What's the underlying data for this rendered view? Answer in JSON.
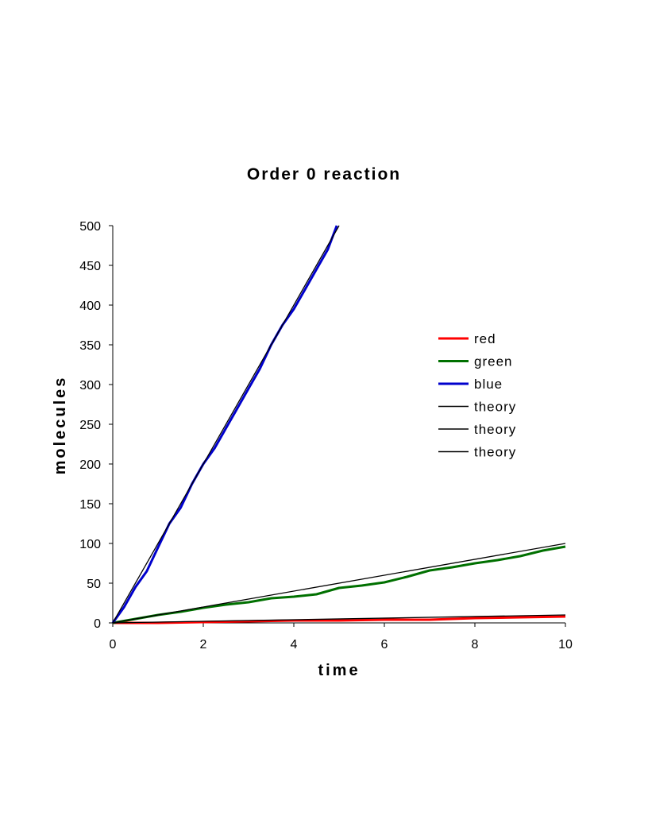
{
  "chart_data": {
    "type": "line",
    "title": "Order 0 reaction",
    "xlabel": "time",
    "ylabel": "molecules",
    "xlim": [
      0,
      10
    ],
    "ylim": [
      0,
      500
    ],
    "xticks": [
      "0",
      "2",
      "4",
      "6",
      "8",
      "10"
    ],
    "yticks": [
      "0",
      "50",
      "100",
      "150",
      "200",
      "250",
      "300",
      "350",
      "400",
      "450",
      "500"
    ],
    "grid": false,
    "legend_position": "right",
    "series": [
      {
        "name": "red",
        "color": "#ff0000",
        "x": [
          0,
          1,
          2,
          3,
          4,
          5,
          6,
          7,
          8,
          9,
          10
        ],
        "y": [
          0,
          0,
          1,
          2,
          3,
          3,
          4,
          4,
          6,
          7,
          8
        ]
      },
      {
        "name": "green",
        "color": "#007000",
        "x": [
          0,
          0.5,
          1,
          1.5,
          2,
          2.5,
          3,
          3.5,
          4,
          4.5,
          5,
          5.5,
          6,
          6.5,
          7,
          7.5,
          8,
          8.5,
          9,
          9.5,
          10
        ],
        "y": [
          0,
          5,
          10,
          14,
          19,
          23,
          26,
          31,
          33,
          36,
          44,
          47,
          51,
          58,
          66,
          70,
          75,
          79,
          84,
          91,
          96
        ]
      },
      {
        "name": "blue",
        "color": "#0000cc",
        "x": [
          0,
          0.25,
          0.5,
          0.75,
          1,
          1.25,
          1.5,
          1.75,
          2,
          2.25,
          2.5,
          2.75,
          3,
          3.25,
          3.5,
          3.75,
          4,
          4.25,
          4.5,
          4.75,
          4.95
        ],
        "y": [
          0,
          20,
          45,
          65,
          95,
          125,
          145,
          175,
          200,
          220,
          245,
          270,
          295,
          320,
          350,
          375,
          395,
          420,
          445,
          470,
          500
        ]
      },
      {
        "name": "theory",
        "color": "#000000",
        "x": [
          0,
          10
        ],
        "y": [
          0,
          10
        ]
      },
      {
        "name": "theory",
        "color": "#000000",
        "x": [
          0,
          10
        ],
        "y": [
          0,
          100
        ]
      },
      {
        "name": "theory",
        "color": "#000000",
        "x": [
          0,
          5
        ],
        "y": [
          0,
          500
        ]
      }
    ]
  }
}
